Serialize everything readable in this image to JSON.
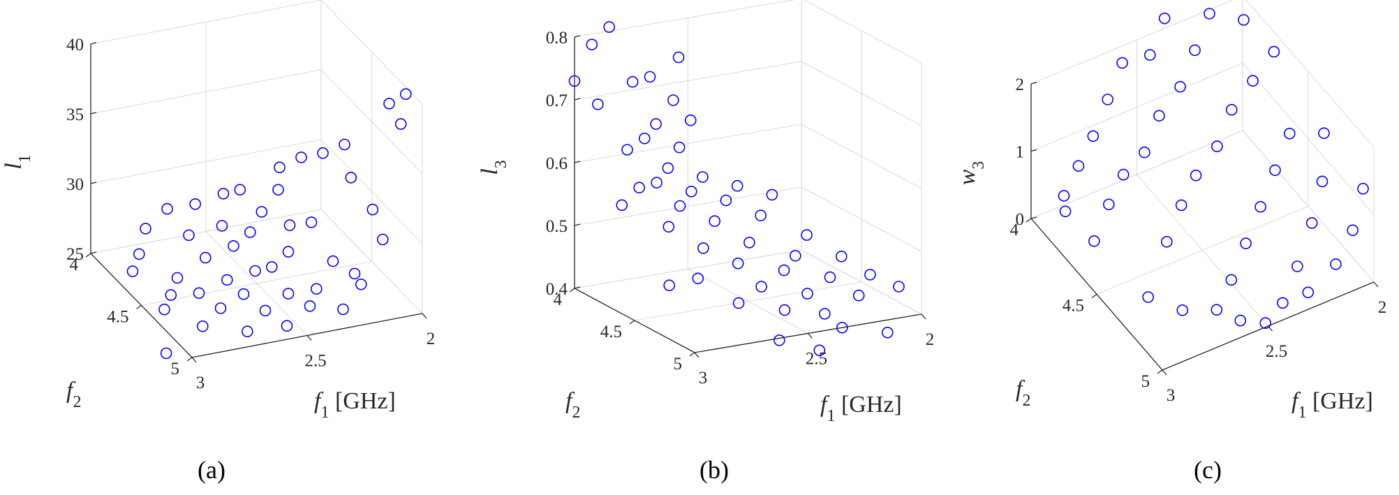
{
  "chart_data": [
    {
      "type": "scatter",
      "panel_label": "(a)",
      "xlabel": "f1 [GHz]",
      "ylabel": "f2",
      "zlabel": "l1",
      "xlim": [
        2,
        3
      ],
      "ylim": [
        4,
        5
      ],
      "zlim": [
        25,
        40
      ],
      "xticks": [
        "2",
        "2.5",
        "3"
      ],
      "yticks": [
        "4",
        "4.5",
        "5"
      ],
      "zticks": [
        "25",
        "30",
        "35",
        "40"
      ],
      "grid": true,
      "marker": "open-circle",
      "color": "#0000ff",
      "points": [
        [
          2.05,
          4.95,
          40.5
        ],
        [
          2.1,
          4.9,
          39.6
        ],
        [
          2.08,
          4.97,
          38.6
        ],
        [
          2.25,
          4.8,
          36.4
        ],
        [
          2.3,
          4.7,
          35.2
        ],
        [
          2.35,
          4.6,
          34.3
        ],
        [
          2.2,
          4.75,
          33.5
        ],
        [
          2.4,
          4.5,
          33.0
        ],
        [
          2.45,
          4.6,
          32.3
        ],
        [
          2.55,
          4.45,
          31.5
        ],
        [
          2.15,
          4.85,
          31.8
        ],
        [
          2.6,
          4.4,
          31.0
        ],
        [
          2.5,
          4.55,
          30.5
        ],
        [
          2.7,
          4.35,
          30.2
        ],
        [
          2.35,
          4.7,
          30.4
        ],
        [
          2.65,
          4.5,
          29.6
        ],
        [
          2.4,
          4.6,
          29.6
        ],
        [
          2.8,
          4.3,
          29.8
        ],
        [
          2.55,
          4.55,
          29.2
        ],
        [
          2.45,
          4.7,
          28.6
        ],
        [
          2.75,
          4.4,
          28.5
        ],
        [
          2.3,
          4.8,
          28.2
        ],
        [
          2.6,
          4.5,
          28.0
        ],
        [
          2.85,
          4.2,
          27.8
        ],
        [
          2.5,
          4.65,
          27.3
        ],
        [
          2.7,
          4.45,
          27.1
        ],
        [
          2.9,
          4.25,
          26.5
        ],
        [
          2.2,
          4.85,
          26.6
        ],
        [
          2.55,
          4.6,
          26.8
        ],
        [
          2.35,
          4.75,
          26.0
        ],
        [
          2.65,
          4.55,
          26.1
        ],
        [
          2.8,
          4.4,
          25.6
        ],
        [
          2.45,
          4.7,
          25.6
        ],
        [
          2.95,
          4.3,
          25.8
        ],
        [
          2.6,
          4.6,
          25.3
        ],
        [
          2.75,
          4.5,
          25.1
        ],
        [
          2.4,
          4.8,
          25.3
        ],
        [
          2.85,
          4.45,
          24.9
        ],
        [
          2.55,
          4.7,
          24.7
        ],
        [
          2.7,
          4.6,
          24.6
        ],
        [
          2.9,
          4.5,
          24.4
        ],
        [
          2.3,
          4.9,
          25.5
        ],
        [
          2.5,
          4.8,
          24.2
        ],
        [
          2.8,
          4.65,
          24.0
        ],
        [
          2.65,
          4.75,
          23.9
        ],
        [
          2.98,
          4.7,
          23.0
        ],
        [
          2.15,
          4.95,
          30.4
        ],
        [
          2.25,
          4.9,
          27.9
        ]
      ]
    },
    {
      "type": "scatter",
      "panel_label": "(b)",
      "xlabel": "f1 [GHz]",
      "ylabel": "f2",
      "zlabel": "l3",
      "xlim": [
        2,
        3
      ],
      "ylim": [
        4,
        5
      ],
      "zlim": [
        0.4,
        0.8
      ],
      "xticks": [
        "2",
        "2.5",
        "3"
      ],
      "yticks": [
        "4",
        "4.5",
        "5"
      ],
      "zticks": [
        "0.4",
        "0.5",
        "0.6",
        "0.7",
        "0.8"
      ],
      "grid": true,
      "marker": "open-circle",
      "color": "#0000ff",
      "points": [
        [
          2.9,
          4.1,
          0.82
        ],
        [
          2.95,
          4.05,
          0.79
        ],
        [
          2.7,
          4.3,
          0.78
        ],
        [
          2.8,
          4.25,
          0.75
        ],
        [
          2.85,
          4.2,
          0.74
        ],
        [
          3.0,
          4.0,
          0.73
        ],
        [
          2.75,
          4.35,
          0.72
        ],
        [
          2.95,
          4.1,
          0.7
        ],
        [
          2.7,
          4.4,
          0.69
        ],
        [
          2.8,
          4.3,
          0.68
        ],
        [
          2.85,
          4.3,
          0.66
        ],
        [
          2.75,
          4.4,
          0.65
        ],
        [
          2.9,
          4.25,
          0.64
        ],
        [
          2.8,
          4.4,
          0.62
        ],
        [
          2.7,
          4.5,
          0.61
        ],
        [
          2.85,
          4.4,
          0.6
        ],
        [
          2.6,
          4.6,
          0.6
        ],
        [
          2.75,
          4.5,
          0.59
        ],
        [
          2.9,
          4.35,
          0.59
        ],
        [
          2.65,
          4.6,
          0.58
        ],
        [
          2.5,
          4.7,
          0.59
        ],
        [
          2.8,
          4.5,
          0.57
        ],
        [
          2.95,
          4.3,
          0.56
        ],
        [
          2.7,
          4.6,
          0.55
        ],
        [
          2.55,
          4.7,
          0.56
        ],
        [
          2.85,
          4.5,
          0.54
        ],
        [
          2.4,
          4.8,
          0.53
        ],
        [
          2.6,
          4.7,
          0.52
        ],
        [
          2.75,
          4.6,
          0.51
        ],
        [
          2.45,
          4.8,
          0.5
        ],
        [
          2.3,
          4.9,
          0.5
        ],
        [
          2.65,
          4.7,
          0.49
        ],
        [
          2.5,
          4.8,
          0.48
        ],
        [
          2.8,
          4.65,
          0.47
        ],
        [
          2.35,
          4.9,
          0.47
        ],
        [
          2.6,
          4.8,
          0.46
        ],
        [
          2.2,
          4.95,
          0.47
        ],
        [
          2.9,
          4.6,
          0.46
        ],
        [
          2.45,
          4.9,
          0.45
        ],
        [
          2.7,
          4.8,
          0.44
        ],
        [
          2.25,
          4.95,
          0.44
        ],
        [
          2.55,
          4.9,
          0.43
        ],
        [
          2.4,
          4.95,
          0.42
        ],
        [
          2.1,
          5.0,
          0.45
        ],
        [
          2.35,
          5.0,
          0.4
        ],
        [
          2.6,
          4.95,
          0.39
        ],
        [
          2.15,
          5.0,
          0.38
        ],
        [
          2.45,
          5.0,
          0.37
        ]
      ]
    },
    {
      "type": "scatter",
      "panel_label": "(c)",
      "xlabel": "f1 [GHz]",
      "ylabel": "f2",
      "zlabel": "w3",
      "xlim": [
        2,
        3
      ],
      "ylim": [
        4,
        5
      ],
      "zlim": [
        0,
        2
      ],
      "xticks": [
        "2",
        "2.5",
        "3"
      ],
      "yticks": [
        "4",
        "4.5",
        "5"
      ],
      "zticks": [
        "0",
        "1",
        "2"
      ],
      "grid": true,
      "marker": "open-circle",
      "color": "#0000ff",
      "points": [
        [
          2.05,
          4.15,
          2.9
        ],
        [
          2.1,
          4.1,
          2.8
        ],
        [
          2.02,
          4.2,
          2.7
        ],
        [
          2.2,
          4.1,
          2.6
        ],
        [
          2.3,
          4.05,
          2.6
        ],
        [
          2.25,
          4.15,
          2.4
        ],
        [
          2.15,
          4.25,
          2.4
        ],
        [
          2.4,
          4.05,
          2.3
        ],
        [
          2.35,
          4.2,
          2.1
        ],
        [
          2.1,
          4.4,
          2.2
        ],
        [
          2.5,
          4.1,
          2.0
        ],
        [
          2.2,
          4.4,
          1.9
        ],
        [
          2.45,
          4.25,
          1.8
        ],
        [
          2.6,
          4.05,
          1.9
        ],
        [
          2.3,
          4.4,
          1.6
        ],
        [
          2.55,
          4.25,
          1.5
        ],
        [
          2.7,
          4.1,
          1.6
        ],
        [
          2.4,
          4.45,
          1.3
        ],
        [
          2.65,
          4.3,
          1.2
        ],
        [
          2.8,
          4.15,
          1.3
        ],
        [
          2.5,
          4.45,
          1.0
        ],
        [
          2.75,
          4.3,
          1.0
        ],
        [
          2.9,
          4.2,
          1.1
        ],
        [
          2.6,
          4.5,
          0.8
        ],
        [
          2.85,
          4.35,
          0.8
        ],
        [
          3.0,
          4.25,
          0.9
        ],
        [
          2.7,
          4.55,
          0.5
        ],
        [
          2.95,
          4.4,
          0.5
        ],
        [
          2.15,
          4.6,
          1.5
        ],
        [
          2.25,
          4.65,
          1.2
        ],
        [
          2.35,
          4.7,
          0.9
        ],
        [
          2.45,
          4.75,
          0.6
        ],
        [
          2.55,
          4.8,
          0.3
        ],
        [
          2.65,
          4.85,
          0.1
        ],
        [
          2.75,
          4.75,
          0.0
        ],
        [
          2.85,
          4.65,
          0.1
        ],
        [
          2.05,
          4.7,
          1.6
        ],
        [
          2.12,
          4.8,
          1.2
        ],
        [
          2.2,
          4.85,
          0.8
        ],
        [
          2.3,
          4.9,
          0.4
        ],
        [
          2.4,
          4.95,
          0.1
        ],
        [
          2.5,
          4.98,
          0.0
        ],
        [
          2.6,
          4.95,
          0.1
        ],
        [
          2.02,
          4.95,
          1.3
        ],
        [
          2.1,
          5.0,
          0.9
        ],
        [
          2.18,
          5.0,
          0.5
        ],
        [
          2.28,
          4.95,
          0.1
        ],
        [
          2.9,
          4.1,
          0.2
        ]
      ]
    }
  ]
}
